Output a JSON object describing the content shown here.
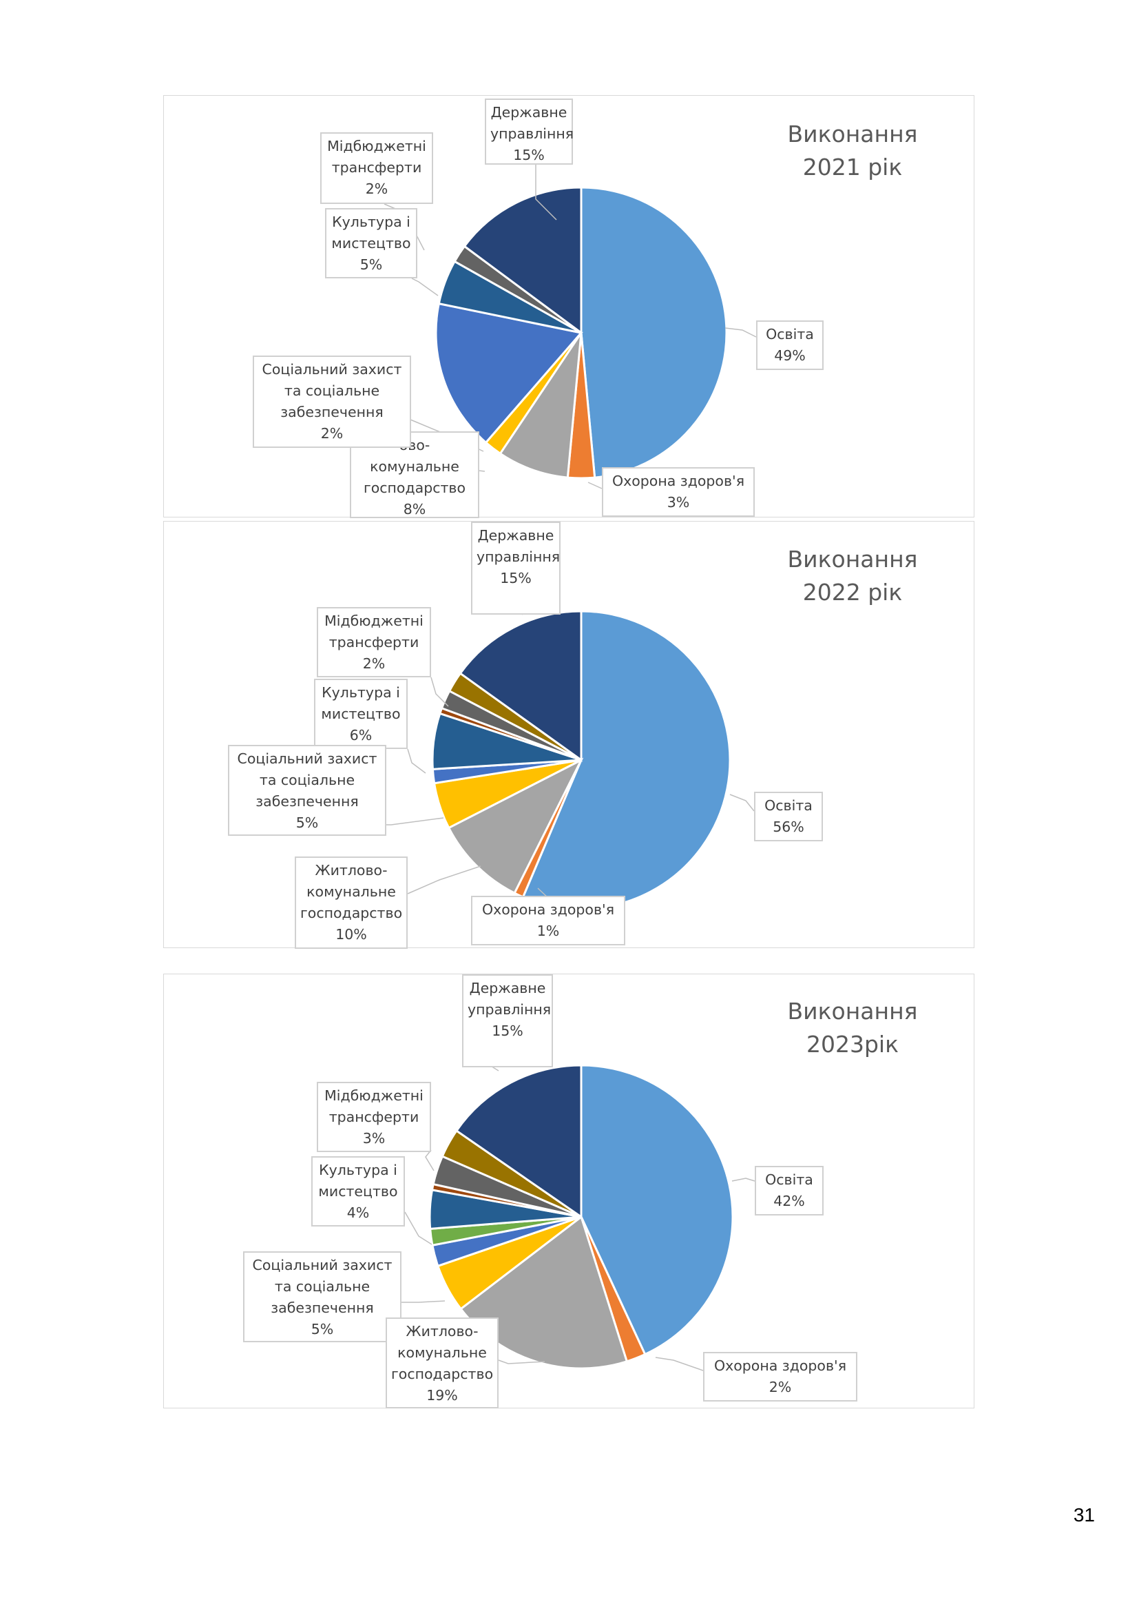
{
  "page": {
    "number": "31"
  },
  "colors": {
    "osvita": "#5b9bd5",
    "okhorona": "#ed7d31",
    "zhytlovo": "#a5a5a5",
    "sotsialnyi": "#ffc000",
    "blue": "#4472c4",
    "green": "#70ad47",
    "darkblue": "#255e91",
    "rust": "#9e480e",
    "gray": "#636363",
    "olive": "#997300",
    "navy": "#264478"
  },
  "chart_data": [
    {
      "type": "pie",
      "title": "Виконання 2021 рік",
      "title_lines": [
        "Виконання",
        "2021 рік"
      ],
      "slices": [
        {
          "label": "Освіта",
          "value": 49,
          "pct": "49%",
          "color": "#5b9bd5"
        },
        {
          "label": "Охорона здоров'я",
          "value": 3,
          "pct": "3%",
          "color": "#ed7d31"
        },
        {
          "label": "Житлово-комунальне господарство",
          "value": 8,
          "pct": "8%",
          "color": "#a5a5a5"
        },
        {
          "label": "Соціальний захист та соціальне забезпечення",
          "value": 2,
          "pct": "2%",
          "color": "#ffc000"
        },
        {
          "label": "",
          "value": 17,
          "pct": "",
          "color": "#4472c4"
        },
        {
          "label": "Культура і мистецтво",
          "value": 5,
          "pct": "5%",
          "color": "#255e91"
        },
        {
          "label": "Мідбюджетні трансферти",
          "value": 2,
          "pct": "2%",
          "color": "#636363"
        },
        {
          "label": "Державне управління",
          "value": 15,
          "pct": "15%",
          "color": "#264478"
        }
      ],
      "labels": [
        {
          "lines": [
            "Державне",
            "управління"
          ],
          "pct": "15%"
        },
        {
          "lines": [
            "Мідбюджетні",
            "трансферти"
          ],
          "pct": "2%"
        },
        {
          "lines": [
            "Культура і",
            "мистецтво"
          ],
          "pct": "5%"
        },
        {
          "lines": [
            "Освіта"
          ],
          "pct": "49%"
        },
        {
          "lines": [
            "Соціальний захист",
            "та соціальне",
            "забезпечення"
          ],
          "pct": "2%"
        },
        {
          "lines": [
            "ово-",
            "комунальне",
            "господарство"
          ],
          "pct": "8%"
        },
        {
          "lines": [
            "Охорона здоров'я"
          ],
          "pct": "3%"
        }
      ]
    },
    {
      "type": "pie",
      "title": "Виконання 2022 рік",
      "title_lines": [
        "Виконання",
        "2022 рік"
      ],
      "slices": [
        {
          "label": "Освіта",
          "value": 56,
          "pct": "56%",
          "color": "#5b9bd5"
        },
        {
          "label": "Охорона здоров'я",
          "value": 1,
          "pct": "1%",
          "color": "#ed7d31"
        },
        {
          "label": "Житлово-комунальне господарство",
          "value": 10,
          "pct": "10%",
          "color": "#a5a5a5"
        },
        {
          "label": "Соціальний захист та соціальне забезпечення",
          "value": 5,
          "pct": "5%",
          "color": "#ffc000"
        },
        {
          "label": "",
          "value": 1.5,
          "pct": "",
          "color": "#4472c4"
        },
        {
          "label": "Культура і мистецтво",
          "value": 6,
          "pct": "6%",
          "color": "#255e91"
        },
        {
          "label": "",
          "value": 0.6,
          "pct": "",
          "color": "#9e480e"
        },
        {
          "label": "Мідбюджетні трансферти",
          "value": 2,
          "pct": "2%",
          "color": "#636363"
        },
        {
          "label": "",
          "value": 2.2,
          "pct": "",
          "color": "#997300"
        },
        {
          "label": "Державне управління",
          "value": 15,
          "pct": "15%",
          "color": "#264478"
        }
      ],
      "labels": [
        {
          "lines": [
            "Державне",
            "управління"
          ],
          "pct": "15%"
        },
        {
          "lines": [
            "Мідбюджетні",
            "трансферти"
          ],
          "pct": "2%"
        },
        {
          "lines": [
            "Культура і",
            "мистецтво"
          ],
          "pct": "6%"
        },
        {
          "lines": [
            "Соціальний захист",
            "та соціальне",
            "забезпечення"
          ],
          "pct": "5%"
        },
        {
          "lines": [
            "Освіта"
          ],
          "pct": "56%"
        },
        {
          "lines": [
            "Житлово-",
            "комунальне",
            "господарство"
          ],
          "pct": "10%"
        },
        {
          "lines": [
            "Охорона здоров'я"
          ],
          "pct": "1%"
        }
      ]
    },
    {
      "type": "pie",
      "title": "Виконання 2023рік",
      "title_lines": [
        "Виконання",
        "2023рік"
      ],
      "slices": [
        {
          "label": "Освіта",
          "value": 42,
          "pct": "42%",
          "color": "#5b9bd5"
        },
        {
          "label": "Охорона здоров'я",
          "value": 2,
          "pct": "2%",
          "color": "#ed7d31"
        },
        {
          "label": "Житлово-комунальне господарство",
          "value": 19,
          "pct": "19%",
          "color": "#a5a5a5"
        },
        {
          "label": "Соціальний захист та соціальне забезпечення",
          "value": 5,
          "pct": "5%",
          "color": "#ffc000"
        },
        {
          "label": "",
          "value": 2.2,
          "pct": "",
          "color": "#4472c4"
        },
        {
          "label": "",
          "value": 1.7,
          "pct": "",
          "color": "#70ad47"
        },
        {
          "label": "Культура і мистецтво",
          "value": 4,
          "pct": "4%",
          "color": "#255e91"
        },
        {
          "label": "",
          "value": 0.6,
          "pct": "",
          "color": "#9e480e"
        },
        {
          "label": "",
          "value": 3,
          "pct": "",
          "color": "#636363"
        },
        {
          "label": "Мідбюджетні трансферти",
          "value": 3,
          "pct": "3%",
          "color": "#997300"
        },
        {
          "label": "Державне управління",
          "value": 15,
          "pct": "15%",
          "color": "#264478"
        }
      ],
      "labels": [
        {
          "lines": [
            "Державне",
            "управління"
          ],
          "pct": "15%"
        },
        {
          "lines": [
            "Мідбюджетні",
            "трансферти"
          ],
          "pct": "3%"
        },
        {
          "lines": [
            "Освіта"
          ],
          "pct": "42%"
        },
        {
          "lines": [
            "Культура і",
            "мистецтво"
          ],
          "pct": "4%"
        },
        {
          "lines": [
            "Соціальний захист",
            "та соціальне",
            "забезпечення"
          ],
          "pct": "5%"
        },
        {
          "lines": [
            "Житлово-",
            "комунальне",
            "господарство"
          ],
          "pct": "19%"
        },
        {
          "lines": [
            "Охорона здоров'я"
          ],
          "pct": "2%"
        }
      ]
    }
  ]
}
